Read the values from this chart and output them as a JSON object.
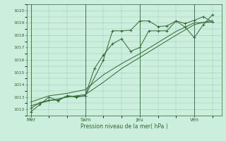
{
  "background_color": "#cceedd",
  "grid_color": "#99ccbb",
  "line_color": "#336633",
  "xlabel": "Pression niveau de la mer( hPa )",
  "ylim": [
    1011.5,
    1020.5
  ],
  "yticks": [
    1012,
    1013,
    1014,
    1015,
    1016,
    1017,
    1018,
    1019,
    1020
  ],
  "xtick_labels": [
    "Mer",
    "Sam",
    "Jeu",
    "Ven"
  ],
  "xtick_positions": [
    0,
    30,
    60,
    90
  ],
  "vline_positions": [
    0,
    30,
    60,
    90
  ],
  "xlim": [
    -2,
    105
  ],
  "line1_x": [
    0,
    5,
    10,
    15,
    20,
    25,
    30,
    35,
    40,
    45,
    50,
    55,
    60,
    65,
    70,
    75,
    80,
    85,
    90,
    95,
    100
  ],
  "line1_y": [
    1011.8,
    1012.4,
    1013.0,
    1012.7,
    1013.1,
    1013.0,
    1013.1,
    1015.3,
    1016.4,
    1017.3,
    1017.7,
    1016.7,
    1017.0,
    1018.35,
    1018.35,
    1018.35,
    1019.15,
    1018.65,
    1017.8,
    1018.85,
    1019.65
  ],
  "line2_x": [
    0,
    10,
    20,
    30,
    40,
    50,
    60,
    70,
    80,
    90,
    100
  ],
  "line2_y": [
    1012.3,
    1012.7,
    1013.0,
    1013.2,
    1014.2,
    1015.3,
    1016.2,
    1017.1,
    1018.0,
    1018.85,
    1019.2
  ],
  "line3_x": [
    0,
    10,
    20,
    30,
    40,
    50,
    60,
    70,
    80,
    90,
    100
  ],
  "line3_y": [
    1012.6,
    1013.1,
    1013.3,
    1013.6,
    1014.8,
    1015.7,
    1016.5,
    1017.4,
    1018.3,
    1019.0,
    1019.05
  ],
  "line4_x": [
    0,
    5,
    10,
    15,
    20,
    25,
    30,
    40,
    45,
    50,
    55,
    60,
    65,
    70,
    75,
    80,
    85,
    90,
    95,
    100
  ],
  "line4_y": [
    1012.1,
    1012.55,
    1012.75,
    1012.75,
    1013.1,
    1013.05,
    1013.1,
    1016.0,
    1018.35,
    1018.35,
    1018.4,
    1019.15,
    1019.15,
    1018.7,
    1018.75,
    1019.15,
    1018.95,
    1019.2,
    1019.5,
    1019.05
  ]
}
